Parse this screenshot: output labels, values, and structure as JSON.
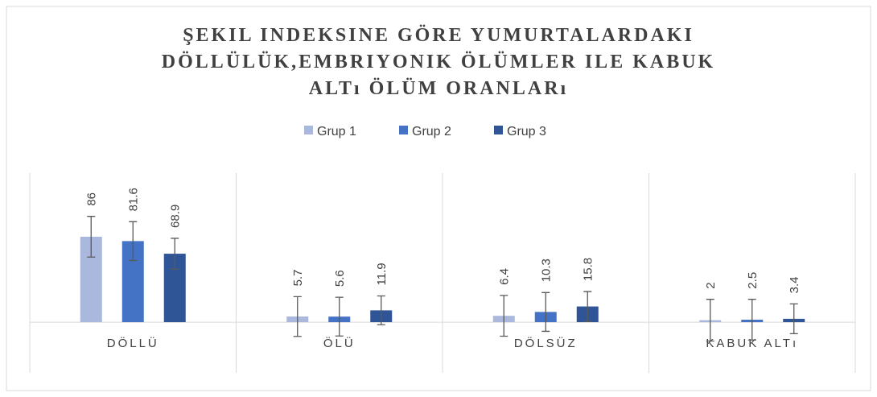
{
  "chart_data": {
    "type": "bar",
    "title": [
      "ŞEKIL INDEKSINE GÖRE YUMURTALARDAKI",
      "DÖLLÜLÜK,EMBRIYONIK ÖLÜMLER ILE KABUK",
      "ALTı ÖLÜM ORANLARı"
    ],
    "categories": [
      "DÖLLÜ",
      "ÖLÜ",
      "DÖLSÜZ",
      "KABUK ALTı"
    ],
    "series": [
      {
        "name": "Grup 1",
        "color": "#a9b8dc",
        "values": [
          86,
          5.7,
          6.4,
          2
        ],
        "errors": [
          20.5,
          20,
          20.5,
          21
        ]
      },
      {
        "name": "Grup 2",
        "color": "#4472c4",
        "values": [
          81.6,
          5.6,
          10.3,
          2.5
        ],
        "errors": [
          19.5,
          19.5,
          19.5,
          20.5
        ]
      },
      {
        "name": "Grup 3",
        "color": "#2f5597",
        "values": [
          68.9,
          11.9,
          15.8,
          3.4
        ],
        "errors": [
          15.5,
          14.5,
          15,
          15
        ]
      }
    ],
    "ylim": [
      -51,
      150
    ],
    "legend": "top"
  }
}
